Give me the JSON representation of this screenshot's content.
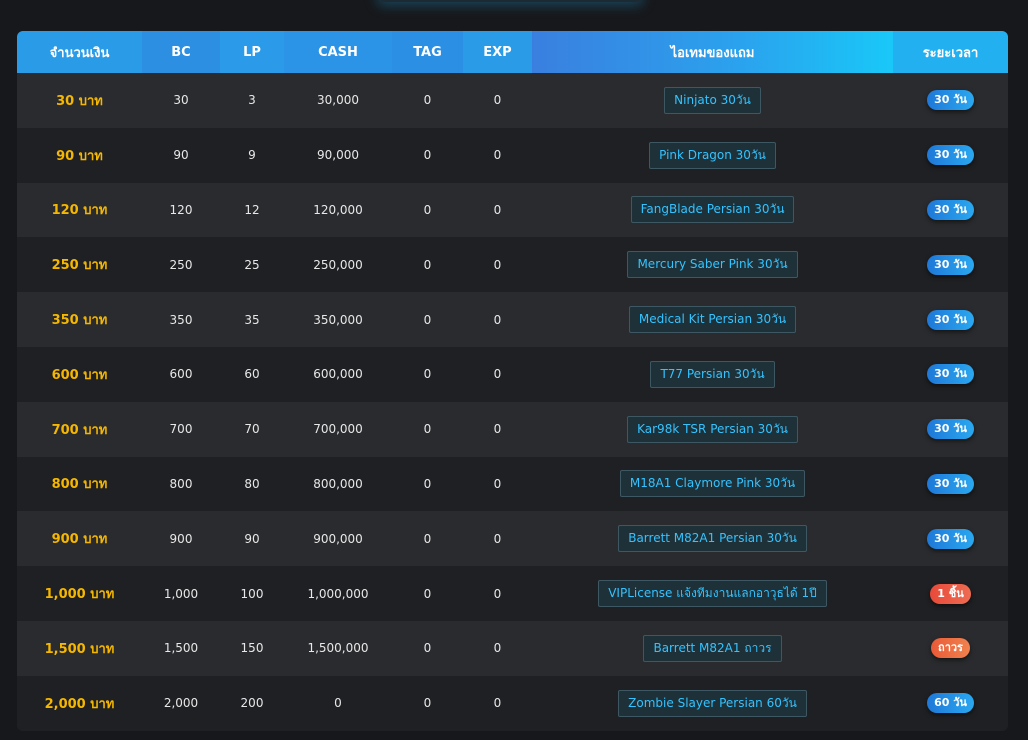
{
  "headers": [
    "จำนวนเงิน",
    "BC",
    "LP",
    "CASH",
    "TAG",
    "EXP",
    "ไอเทมของแถม",
    "ระยะเวลา"
  ],
  "rows": [
    {
      "amount": "30 บาท",
      "bc": "30",
      "lp": "3",
      "cash": "30,000",
      "tag": "0",
      "exp": "0",
      "item": "Ninjato 30วัน",
      "duration": "30 วัน",
      "badge_color": "#2196e8"
    },
    {
      "amount": "90 บาท",
      "bc": "90",
      "lp": "9",
      "cash": "90,000",
      "tag": "0",
      "exp": "0",
      "item": "Pink Dragon 30วัน",
      "duration": "30 วัน",
      "badge_color": "#2196e8"
    },
    {
      "amount": "120 บาท",
      "bc": "120",
      "lp": "12",
      "cash": "120,000",
      "tag": "0",
      "exp": "0",
      "item": "FangBlade Persian 30วัน",
      "duration": "30 วัน",
      "badge_color": "#2196e8"
    },
    {
      "amount": "250 บาท",
      "bc": "250",
      "lp": "25",
      "cash": "250,000",
      "tag": "0",
      "exp": "0",
      "item": "Mercury Saber Pink 30วัน",
      "duration": "30 วัน",
      "badge_color": "#2196e8"
    },
    {
      "amount": "350 บาท",
      "bc": "350",
      "lp": "35",
      "cash": "350,000",
      "tag": "0",
      "exp": "0",
      "item": "Medical Kit Persian 30วัน",
      "duration": "30 วัน",
      "badge_color": "#2196e8"
    },
    {
      "amount": "600 บาท",
      "bc": "600",
      "lp": "60",
      "cash": "600,000",
      "tag": "0",
      "exp": "0",
      "item": "T77 Persian 30วัน",
      "duration": "30 วัน",
      "badge_color": "#2196e8"
    },
    {
      "amount": "700 บาท",
      "bc": "700",
      "lp": "70",
      "cash": "700,000",
      "tag": "0",
      "exp": "0",
      "item": "Kar98k TSR Persian 30วัน",
      "duration": "30 วัน",
      "badge_color": "#2196e8"
    },
    {
      "amount": "800 บาท",
      "bc": "800",
      "lp": "80",
      "cash": "800,000",
      "tag": "0",
      "exp": "0",
      "item": "M18A1 Claymore Pink 30วัน",
      "duration": "30 วัน",
      "badge_color": "#2196e8"
    },
    {
      "amount": "900 บาท",
      "bc": "900",
      "lp": "90",
      "cash": "900,000",
      "tag": "0",
      "exp": "0",
      "item": "Barrett M82A1 Persian 30วัน",
      "duration": "30 วัน",
      "badge_color": "#2196e8"
    },
    {
      "amount": "1,000 บาท",
      "bc": "1,000",
      "lp": "100",
      "cash": "1,000,000",
      "tag": "0",
      "exp": "0",
      "item": "VIPLicense แจ้งทีมงานแลกอาวุธได้ 1ปี",
      "duration": "1 ชิ้น",
      "badge_color": "#e84a3a"
    },
    {
      "amount": "1,500 บาท",
      "bc": "1,500",
      "lp": "150",
      "cash": "1,500,000",
      "tag": "0",
      "exp": "0",
      "item": "Barrett M82A1 ถาวร",
      "duration": "ถาวร",
      "badge_color": "#ea5a37"
    },
    {
      "amount": "2,000 บาท",
      "bc": "2,000",
      "lp": "200",
      "cash": "0",
      "tag": "0",
      "exp": "0",
      "item": "Zombie Slayer Persian 60วัน",
      "duration": "60 วัน",
      "badge_color": "#2196e8"
    }
  ]
}
